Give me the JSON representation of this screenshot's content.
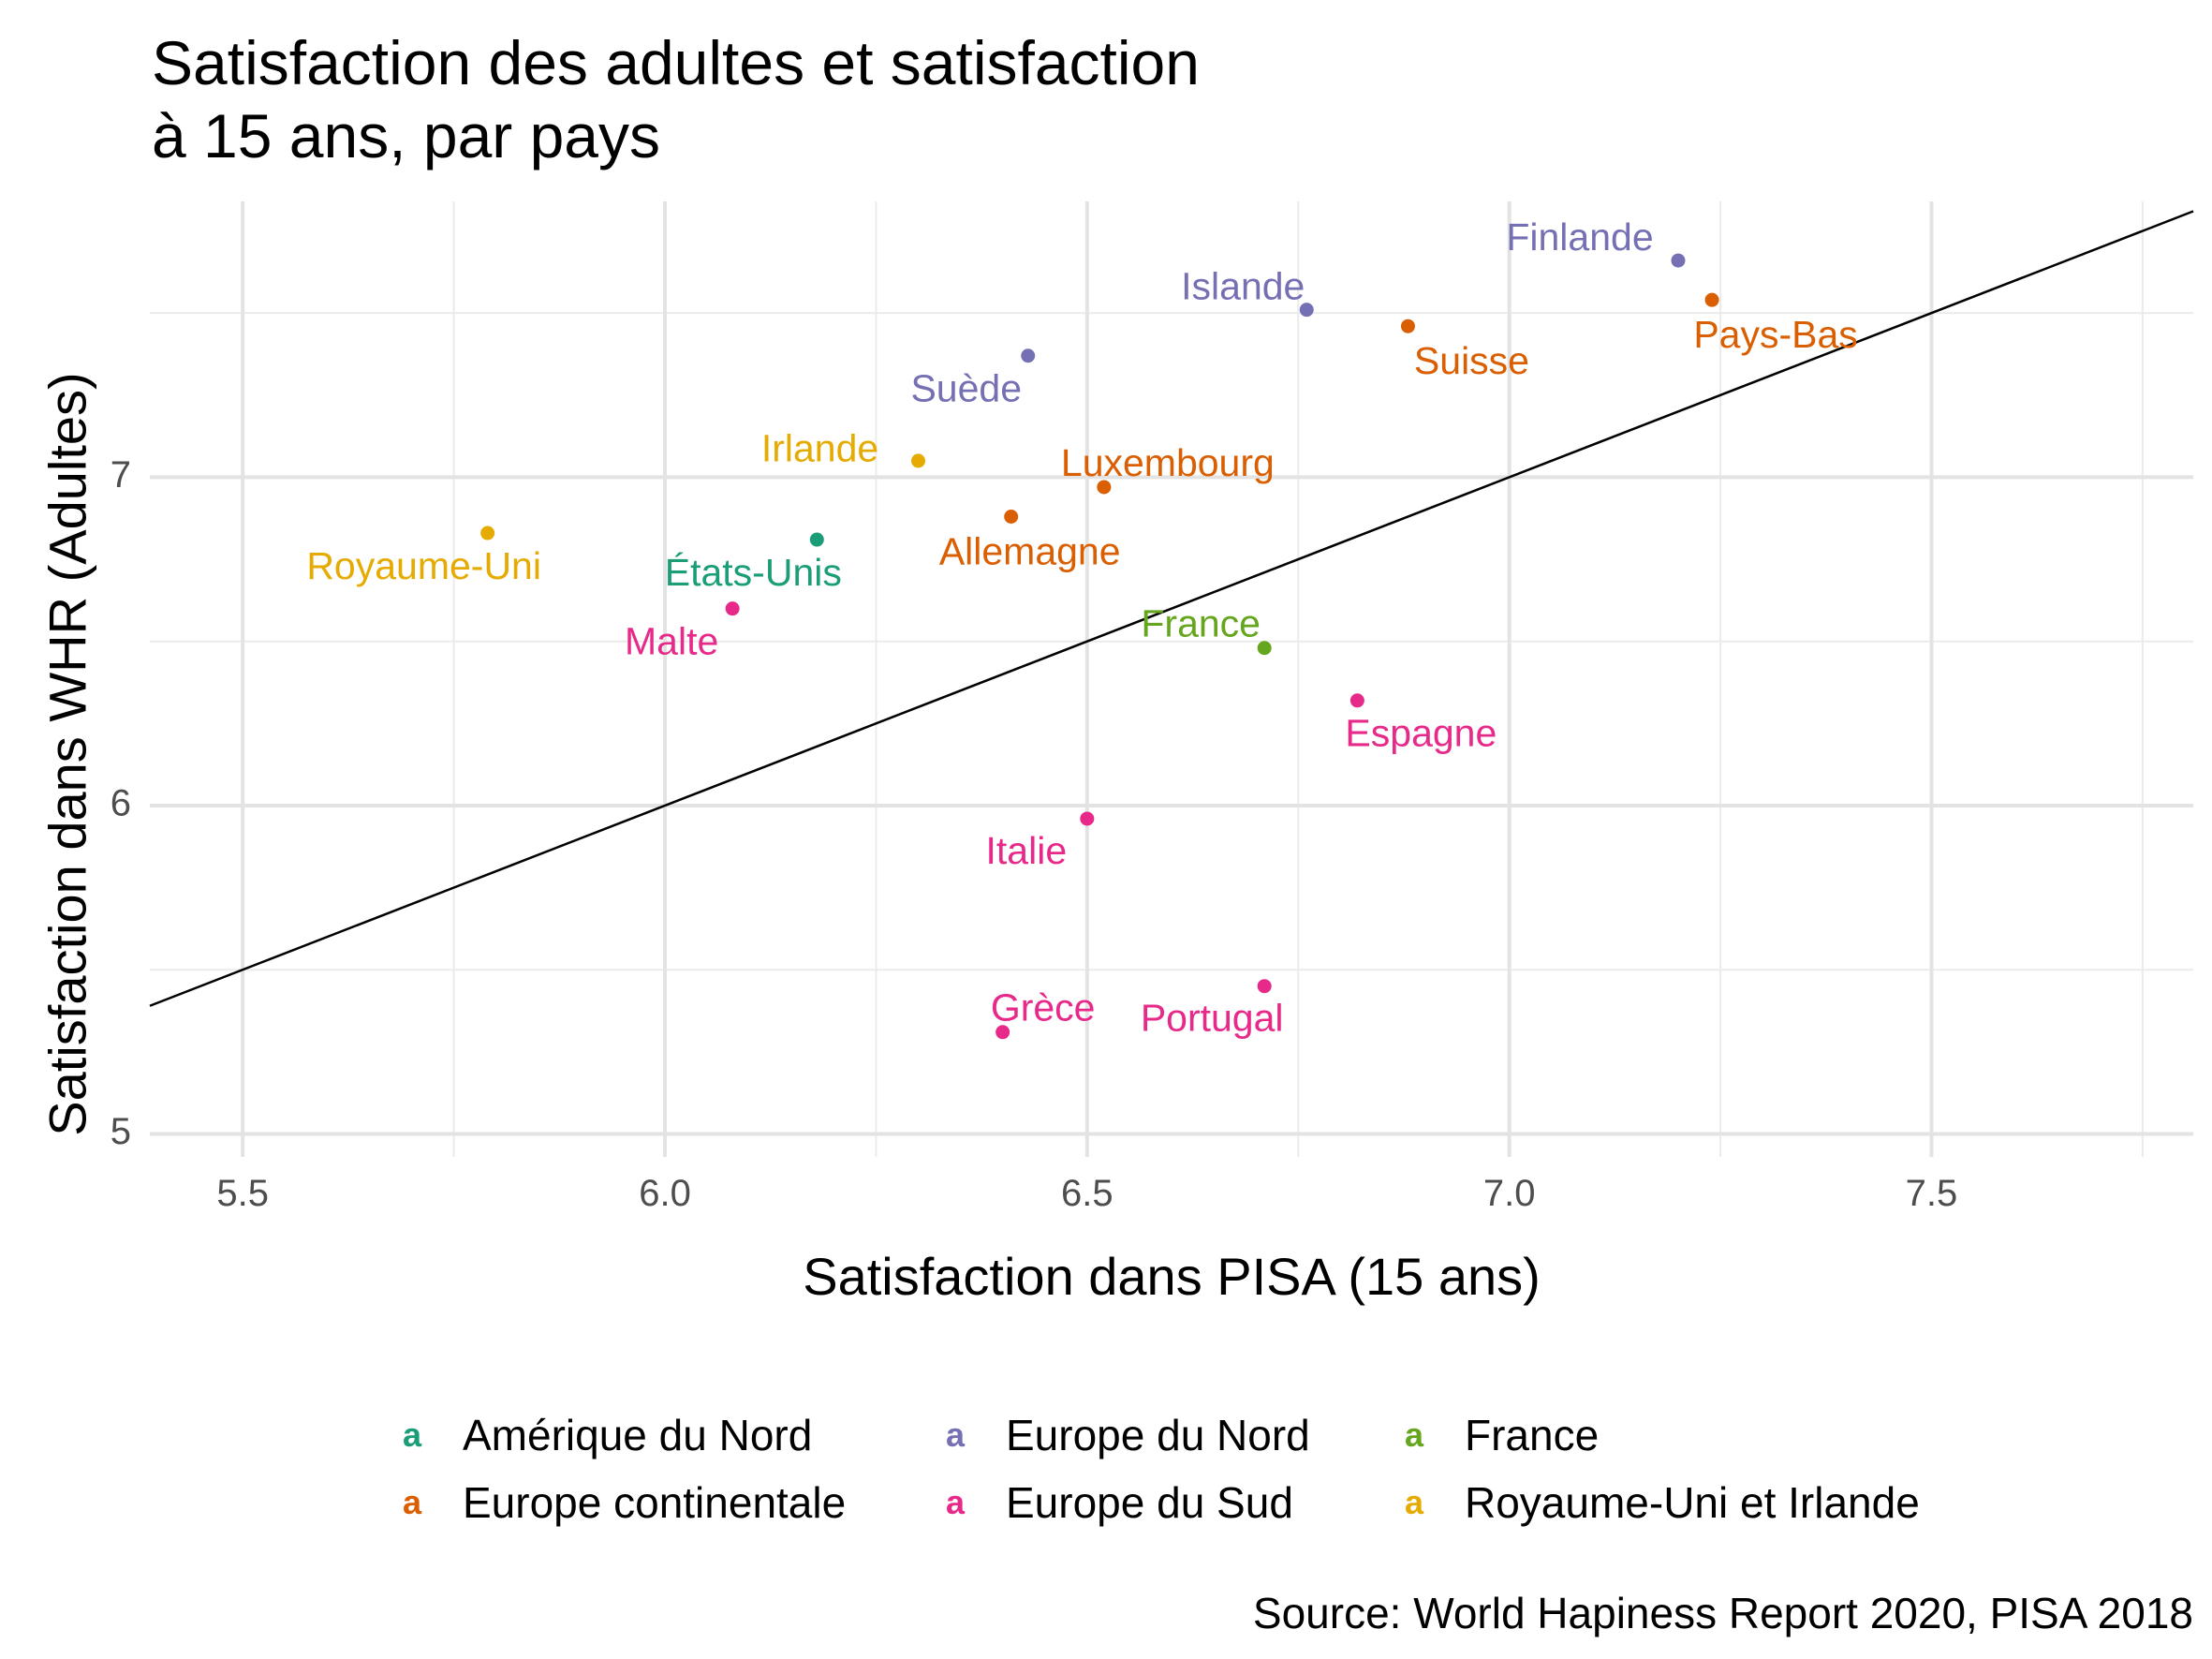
{
  "header": {
    "title_line1": "Satisfaction des adultes et satisfaction",
    "title_line2": "à 15 ans, par pays"
  },
  "caption": "Source: World Hapiness Report 2020, PISA 2018",
  "chart_data": {
    "type": "scatter",
    "title": "Satisfaction des adultes et satisfaction à 15 ans, par pays",
    "xlabel": "Satisfaction dans PISA (15 ans)",
    "ylabel": "Satisfaction dans WHR (Adultes)",
    "xlim": [
      5.39,
      7.81
    ],
    "ylim": [
      4.93,
      7.84
    ],
    "x_ticks": [
      5.5,
      6.0,
      6.5,
      7.0,
      7.5
    ],
    "x_tick_labels": [
      "5.5",
      "6.0",
      "6.5",
      "7.0",
      "7.5"
    ],
    "y_ticks": [
      5,
      6,
      7
    ],
    "y_tick_labels": [
      "5",
      "6",
      "7"
    ],
    "grid": true,
    "reference_line": {
      "type": "identity",
      "slope": 1,
      "intercept": 0
    },
    "legend_position": "bottom",
    "legend_title": "",
    "groups": [
      {
        "name": "Amérique du Nord",
        "color": "#1b9e77"
      },
      {
        "name": "Europe continentale",
        "color": "#d95f02"
      },
      {
        "name": "Europe du Nord",
        "color": "#7570b3"
      },
      {
        "name": "Europe du Sud",
        "color": "#e7298a"
      },
      {
        "name": "France",
        "color": "#66a61e"
      },
      {
        "name": "Royaume-Uni et Irlande",
        "color": "#e6ab02"
      }
    ],
    "points": [
      {
        "label": "Finlande",
        "group": "Europe du Nord",
        "x": 7.2,
        "y": 7.66
      },
      {
        "label": "Islande",
        "group": "Europe du Nord",
        "x": 6.76,
        "y": 7.51
      },
      {
        "label": "Suède",
        "group": "Europe du Nord",
        "x": 6.43,
        "y": 7.37
      },
      {
        "label": "Pays-Bas",
        "group": "Europe continentale",
        "x": 7.24,
        "y": 7.54
      },
      {
        "label": "Suisse",
        "group": "Europe continentale",
        "x": 6.88,
        "y": 7.46
      },
      {
        "label": "Luxembourg",
        "group": "Europe continentale",
        "x": 6.52,
        "y": 6.97
      },
      {
        "label": "Allemagne",
        "group": "Europe continentale",
        "x": 6.41,
        "y": 6.88
      },
      {
        "label": "Irlande",
        "group": "Royaume-Uni et Irlande",
        "x": 6.3,
        "y": 7.05
      },
      {
        "label": "Royaume-Uni",
        "group": "Royaume-Uni et Irlande",
        "x": 5.79,
        "y": 6.83
      },
      {
        "label": "États-Unis",
        "group": "Amérique du Nord",
        "x": 6.18,
        "y": 6.81
      },
      {
        "label": "Malte",
        "group": "Europe du Sud",
        "x": 6.08,
        "y": 6.6
      },
      {
        "label": "France",
        "group": "France",
        "x": 6.71,
        "y": 6.48
      },
      {
        "label": "Espagne",
        "group": "Europe du Sud",
        "x": 6.82,
        "y": 6.32
      },
      {
        "label": "Italie",
        "group": "Europe du Sud",
        "x": 6.5,
        "y": 5.96
      },
      {
        "label": "Portugal",
        "group": "Europe du Sud",
        "x": 6.71,
        "y": 5.45
      },
      {
        "label": "Grèce",
        "group": "Europe du Sud",
        "x": 6.4,
        "y": 5.31
      }
    ]
  }
}
